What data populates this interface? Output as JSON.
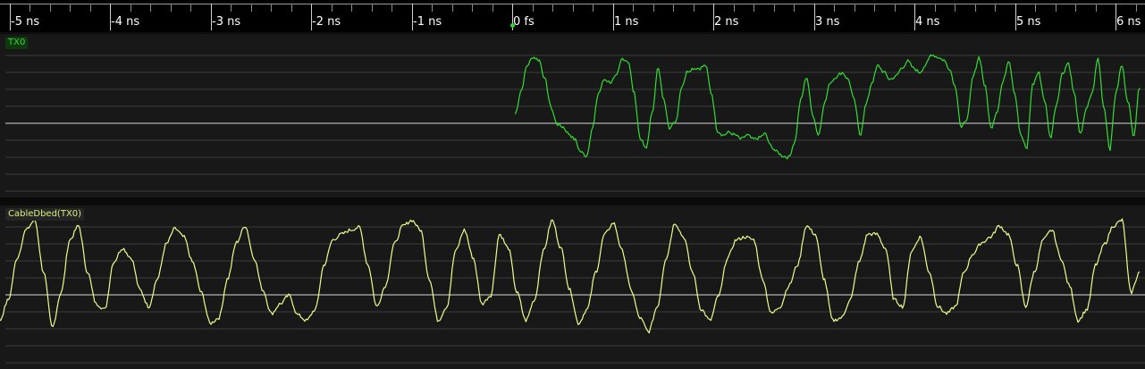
{
  "timeline": {
    "ticks": [
      {
        "label": "-5 ns",
        "ns": -5
      },
      {
        "label": "-4 ns",
        "ns": -4
      },
      {
        "label": "-3 ns",
        "ns": -3
      },
      {
        "label": "-2 ns",
        "ns": -2
      },
      {
        "label": "-1 ns",
        "ns": -1
      },
      {
        "label": "0 fs",
        "ns": 0
      },
      {
        "label": "1 ns",
        "ns": 1
      },
      {
        "label": "2 ns",
        "ns": 2
      },
      {
        "label": "3 ns",
        "ns": 3
      },
      {
        "label": "4 ns",
        "ns": 4
      },
      {
        "label": "5 ns",
        "ns": 5
      },
      {
        "label": "6 ns",
        "ns": 6
      }
    ],
    "minor_divisions": 5,
    "origin_marker_color": "#2fd62f"
  },
  "channels": [
    {
      "id": "tx0",
      "label": "TX0",
      "trace_color": "#33dd33",
      "label_bg": "#0f3a0f",
      "label_color": "#3fd23f",
      "start_ns": 0.03,
      "end_ns": 6.24,
      "points": [
        0.45,
        0.62,
        0.8,
        0.86,
        0.84,
        0.7,
        0.5,
        0.38,
        0.36,
        0.31,
        0.27,
        0.18,
        0.15,
        0.35,
        0.6,
        0.7,
        0.68,
        0.72,
        0.85,
        0.83,
        0.6,
        0.28,
        0.2,
        0.45,
        0.78,
        0.55,
        0.35,
        0.4,
        0.65,
        0.76,
        0.78,
        0.78,
        0.8,
        0.6,
        0.33,
        0.3,
        0.32,
        0.3,
        0.27,
        0.3,
        0.27,
        0.28,
        0.31,
        0.22,
        0.18,
        0.15,
        0.14,
        0.25,
        0.55,
        0.72,
        0.45,
        0.3,
        0.53,
        0.68,
        0.72,
        0.75,
        0.7,
        0.55,
        0.3,
        0.52,
        0.68,
        0.8,
        0.75,
        0.7,
        0.72,
        0.78,
        0.83,
        0.78,
        0.75,
        0.8,
        0.88,
        0.86,
        0.84,
        0.78,
        0.65,
        0.35,
        0.42,
        0.72,
        0.86,
        0.65,
        0.35,
        0.47,
        0.68,
        0.84,
        0.6,
        0.3,
        0.2,
        0.66,
        0.75,
        0.55,
        0.28,
        0.52,
        0.74,
        0.82,
        0.6,
        0.3,
        0.48,
        0.6,
        0.85,
        0.5,
        0.2,
        0.6,
        0.8,
        0.55,
        0.3,
        0.65
      ],
      "grid_lines": 9
    },
    {
      "id": "cable",
      "label": "CableDbed(TX0)",
      "trace_color": "#e8ff8a",
      "label_bg": "#252525",
      "label_color": "#d5f07a",
      "start_ns": -5.62,
      "end_ns": 6.24,
      "points": [
        0.45,
        0.62,
        0.72,
        0.82,
        0.92,
        0.55,
        0.2,
        0.35,
        0.65,
        0.85,
        0.92,
        0.55,
        0.15,
        0.4,
        0.78,
        0.88,
        0.55,
        0.32,
        0.28,
        0.62,
        0.72,
        0.65,
        0.42,
        0.3,
        0.5,
        0.75,
        0.86,
        0.8,
        0.62,
        0.4,
        0.18,
        0.22,
        0.5,
        0.76,
        0.88,
        0.65,
        0.42,
        0.25,
        0.32,
        0.38,
        0.24,
        0.2,
        0.28,
        0.6,
        0.78,
        0.82,
        0.85,
        0.87,
        0.6,
        0.3,
        0.45,
        0.75,
        0.88,
        0.92,
        0.85,
        0.5,
        0.2,
        0.3,
        0.7,
        0.85,
        0.65,
        0.32,
        0.38,
        0.82,
        0.72,
        0.4,
        0.2,
        0.35,
        0.7,
        0.92,
        0.72,
        0.42,
        0.18,
        0.28,
        0.55,
        0.82,
        0.9,
        0.7,
        0.42,
        0.22,
        0.12,
        0.3,
        0.65,
        0.9,
        0.8,
        0.55,
        0.28,
        0.2,
        0.38,
        0.65,
        0.78,
        0.8,
        0.78,
        0.5,
        0.25,
        0.3,
        0.45,
        0.6,
        0.88,
        0.82,
        0.5,
        0.2,
        0.22,
        0.35,
        0.62,
        0.82,
        0.82,
        0.72,
        0.35,
        0.3,
        0.7,
        0.8,
        0.55,
        0.3,
        0.25,
        0.3,
        0.55,
        0.68,
        0.76,
        0.8,
        0.88,
        0.82,
        0.6,
        0.3,
        0.55,
        0.78,
        0.85,
        0.65,
        0.45,
        0.2,
        0.28,
        0.6,
        0.75,
        0.88,
        0.92,
        0.4,
        0.55
      ],
      "grid_lines": 9
    }
  ]
}
